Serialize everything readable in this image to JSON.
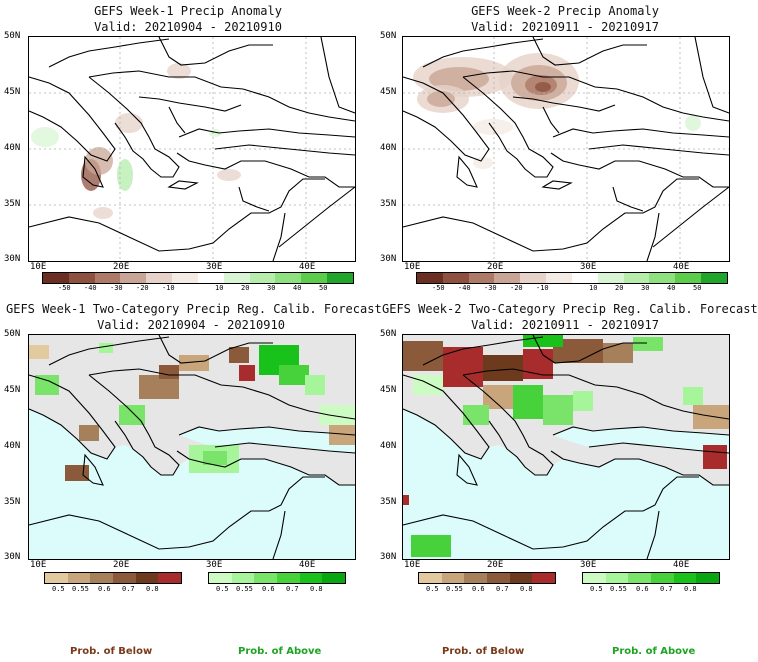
{
  "panels": [
    {
      "title": "GEFS Week-1 Precip Anomaly",
      "valid": "Valid: 20210904 - 20210910"
    },
    {
      "title": "GEFS Week-2 Precip Anomaly",
      "valid": "Valid: 20210911 - 20210917"
    },
    {
      "title": "GEFS Week-1 Two-Category Precip Reg. Calib. Forecast",
      "valid": "Valid: 20210904 - 20210910"
    },
    {
      "title": "GEFS Week-2 Two-Category Precip Reg. Calib. Forecast",
      "valid": "Valid: 20210911 - 20210917"
    }
  ],
  "axes": {
    "lat_labels": [
      "50N",
      "45N",
      "40N",
      "35N",
      "30N"
    ],
    "lon_labels": [
      "10E",
      "20E",
      "30E",
      "40E"
    ]
  },
  "anomaly_colorbar": {
    "ticks": [
      "-50",
      "-40",
      "-30",
      "-20",
      "-10",
      "10",
      "20",
      "30",
      "40",
      "50"
    ],
    "colors": [
      "#6b2f22",
      "#8e5140",
      "#ad7a68",
      "#c9a595",
      "#e6d2c8",
      "#f4ebe5",
      "#ffffff",
      "#d8f5d4",
      "#b6ecac",
      "#8fe07f",
      "#5ccd4a",
      "#1fa62a"
    ]
  },
  "prob_below_colorbar": {
    "ticks": [
      "0.5",
      "0.55",
      "0.6",
      "0.7",
      "0.8"
    ],
    "colors": [
      "#e3c9a0",
      "#c8a57a",
      "#a6805b",
      "#8b5a3a",
      "#6d3a1e",
      "#a82c2c"
    ]
  },
  "prob_above_colorbar": {
    "ticks": [
      "0.5",
      "0.55",
      "0.6",
      "0.7",
      "0.8"
    ],
    "colors": [
      "#ccfcc4",
      "#a6f59a",
      "#7ae46a",
      "#47d23c",
      "#19c21a",
      "#0aa612"
    ]
  },
  "legend": {
    "below": "Prob. of Below",
    "above": "Prob. of Above"
  },
  "colors": {
    "below_text": "#7a3a1a",
    "above_text": "#1fa322",
    "sea": "#dcfcfc",
    "land_gray": "#e6e6e6"
  }
}
